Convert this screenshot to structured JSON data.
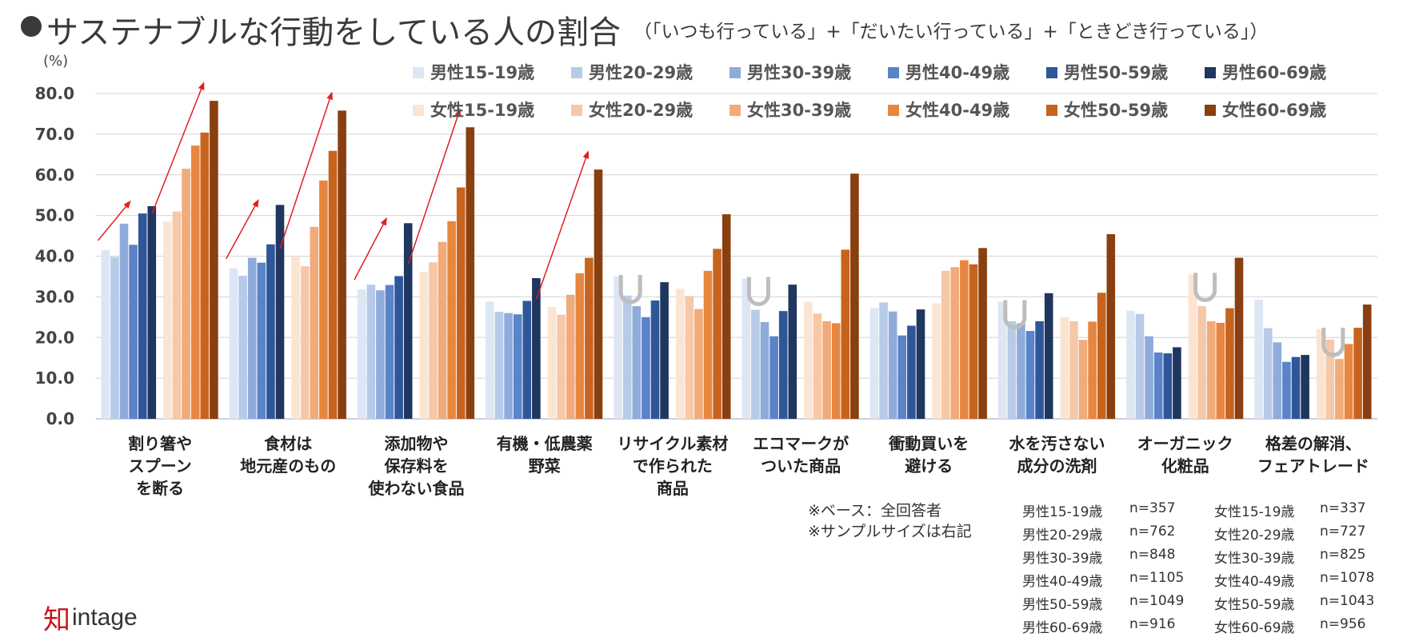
{
  "title": {
    "main": "サステナブルな行動をしている人の割合",
    "sub": "（「いつも行っている」+「だいたい行っている」+「ときどき行っている」）"
  },
  "chart_data": {
    "type": "bar",
    "unit_label": "(%)",
    "ylim": [
      0,
      80
    ],
    "yticks": [
      "0.0",
      "10.0",
      "20.0",
      "30.0",
      "40.0",
      "50.0",
      "60.0",
      "70.0",
      "80.0"
    ],
    "grid": true,
    "legend_position": "top-right",
    "categories": [
      [
        "割り箸や",
        "スプーン",
        "を断る"
      ],
      [
        "食材は",
        "地元産のもの"
      ],
      [
        "添加物や",
        "保存料を",
        "使わない食品"
      ],
      [
        "有機・低農薬",
        "野菜"
      ],
      [
        "リサイクル素材",
        "で作られた",
        "商品"
      ],
      [
        "エコマークが",
        "ついた商品"
      ],
      [
        "衝動買いを",
        "避ける"
      ],
      [
        "水を汚さない",
        "成分の洗剤"
      ],
      [
        "オーガニック",
        "化粧品"
      ],
      [
        "格差の解消、",
        "フェアトレード"
      ]
    ],
    "series": [
      {
        "name": "男性15-19歳",
        "color": "#dde6f4",
        "values": [
          41.5,
          37.0,
          31.8,
          28.8,
          35.0,
          34.5,
          27.2,
          28.8,
          26.6,
          29.3
        ]
      },
      {
        "name": "男性20-29歳",
        "color": "#b7cbe8",
        "values": [
          39.8,
          35.2,
          33.0,
          26.3,
          30.3,
          26.8,
          28.6,
          24.0,
          25.8,
          22.3
        ]
      },
      {
        "name": "男性30-39歳",
        "color": "#8fabdb",
        "values": [
          48.0,
          39.6,
          31.6,
          26.0,
          27.7,
          23.8,
          26.4,
          23.5,
          20.3,
          18.8
        ]
      },
      {
        "name": "男性40-49歳",
        "color": "#5a83c8",
        "values": [
          42.8,
          38.4,
          32.9,
          25.7,
          25.0,
          20.3,
          20.5,
          21.6,
          16.3,
          14.0
        ]
      },
      {
        "name": "男性50-59歳",
        "color": "#2f5699",
        "values": [
          50.5,
          42.9,
          35.1,
          29.0,
          29.1,
          26.5,
          22.9,
          24.0,
          16.1,
          15.2
        ]
      },
      {
        "name": "男性60-69歳",
        "color": "#1f3660",
        "values": [
          52.3,
          52.6,
          48.1,
          34.6,
          33.6,
          33.0,
          26.9,
          30.9,
          17.6,
          15.7
        ]
      },
      {
        "name": "女性15-19歳",
        "color": "#fce4d2",
        "values": [
          48.5,
          40.0,
          36.1,
          27.5,
          32.0,
          28.8,
          28.4,
          25.0,
          35.5,
          22.0
        ]
      },
      {
        "name": "女性20-29歳",
        "color": "#f6c8a8",
        "values": [
          51.0,
          37.5,
          38.5,
          25.6,
          30.2,
          25.9,
          36.4,
          24.0,
          27.7,
          19.5
        ]
      },
      {
        "name": "女性30-39歳",
        "color": "#f1aa7a",
        "values": [
          61.5,
          47.2,
          43.5,
          30.5,
          27.0,
          24.0,
          37.3,
          19.4,
          24.0,
          14.7
        ]
      },
      {
        "name": "女性40-49歳",
        "color": "#e8863f",
        "values": [
          67.2,
          58.6,
          48.6,
          35.8,
          36.4,
          23.5,
          39.0,
          23.9,
          23.6,
          18.4
        ]
      },
      {
        "name": "女性50-59歳",
        "color": "#c8631e",
        "values": [
          70.4,
          65.9,
          56.9,
          39.6,
          41.8,
          41.6,
          38.0,
          31.0,
          27.2,
          22.4
        ]
      },
      {
        "name": "女性60-69歳",
        "color": "#8a3f10",
        "values": [
          78.2,
          75.8,
          71.7,
          61.3,
          50.3,
          60.3,
          42.0,
          45.4,
          39.6,
          28.1
        ]
      }
    ],
    "trend_arrows_on": [
      0,
      1,
      2,
      3
    ],
    "u_marks_on": [
      4,
      5,
      7,
      8,
      9
    ]
  },
  "notes": {
    "base": "※ベース：全回答者",
    "sample": "※サンプルサイズは右記"
  },
  "sample_sizes": {
    "male": [
      {
        "label": "男性15-19歳",
        "n": "n=357"
      },
      {
        "label": "男性20-29歳",
        "n": "n=762"
      },
      {
        "label": "男性30-39歳",
        "n": "n=848"
      },
      {
        "label": "男性40-49歳",
        "n": "n=1105"
      },
      {
        "label": "男性50-59歳",
        "n": "n=1049"
      },
      {
        "label": "男性60-69歳",
        "n": "n=916"
      }
    ],
    "female": [
      {
        "label": "女性15-19歳",
        "n": "n=337"
      },
      {
        "label": "女性20-29歳",
        "n": "n=727"
      },
      {
        "label": "女性30-39歳",
        "n": "n=825"
      },
      {
        "label": "女性40-49歳",
        "n": "n=1078"
      },
      {
        "label": "女性50-59歳",
        "n": "n=1043"
      },
      {
        "label": "女性60-69歳",
        "n": "n=956"
      }
    ]
  },
  "brand": {
    "logo_mark": "知",
    "logo_text": "intage",
    "accent": "#e0201f"
  }
}
